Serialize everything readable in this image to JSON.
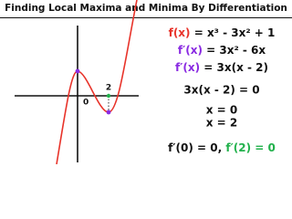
{
  "title": "Finding Local Maxima and Minima By Differentiation",
  "graph": {
    "labels": [
      "0",
      "2"
    ]
  },
  "equations": [
    [
      "f(x)",
      " = x³ - 3x² + 1"
    ],
    [
      "f′(x)",
      " = 3x² - 6x"
    ],
    [
      "f′(x)",
      " = 3x(x - 2)"
    ],
    [
      "3x(x - 2) = 0"
    ],
    [
      "x = 0"
    ],
    [
      "x = 2"
    ],
    [
      "f′(0) = 0, ",
      "f′(2) = 0"
    ]
  ]
}
